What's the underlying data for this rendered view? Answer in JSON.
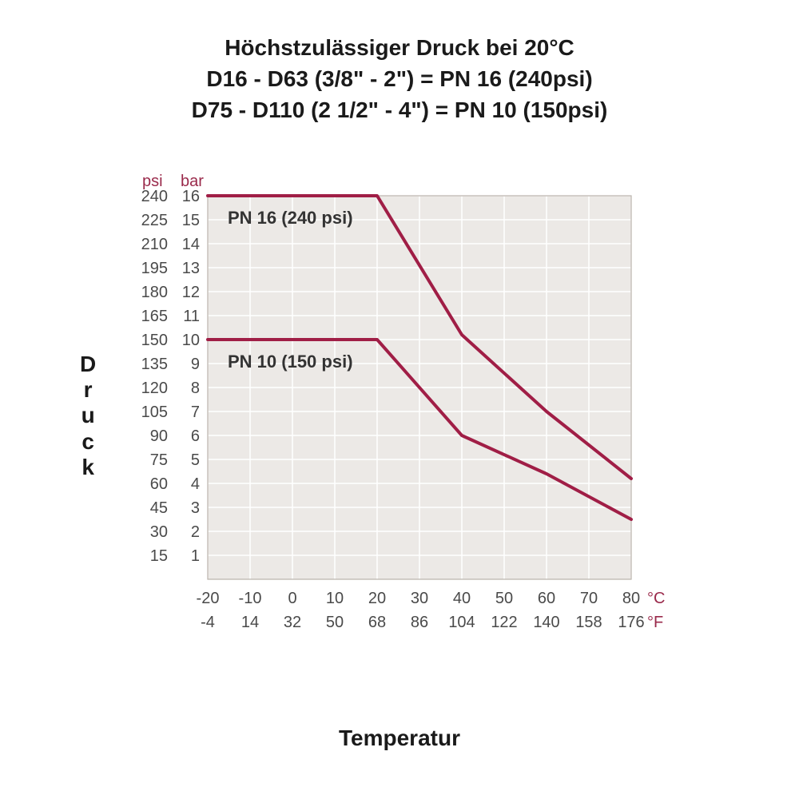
{
  "header": {
    "line1": "Höchstzulässiger Druck bei 20°C",
    "line2": "D16 - D63 (3/8\" - 2\") = PN 16 (240psi)",
    "line3": "D75 - D110 (2 1/2\" - 4\") = PN 10 (150psi)"
  },
  "y_axis_title": "Druck",
  "x_axis_title": "Temperatur",
  "chart": {
    "type": "line",
    "plot_background": "#ece9e6",
    "grid_color": "#ffffff",
    "grid_width": 1.5,
    "outer_border_color": "#b9b2ab",
    "line_color": "#a01e46",
    "line_width": 4,
    "axis_header_color": "#9a2a4b",
    "tick_label_color": "#4a4a4a",
    "y_header_psi": "psi",
    "y_header_bar": "bar",
    "x_unit_c": "°C",
    "x_unit_f": "°F",
    "bar_min": 0,
    "bar_max": 16,
    "bar_ticks": [
      1,
      2,
      3,
      4,
      5,
      6,
      7,
      8,
      9,
      10,
      11,
      12,
      13,
      14,
      15,
      16
    ],
    "psi_ticks": [
      15,
      30,
      45,
      60,
      75,
      90,
      105,
      120,
      135,
      150,
      165,
      180,
      195,
      210,
      225,
      240
    ],
    "x_min": -20,
    "x_max": 80,
    "x_ticks_c": [
      -20,
      -10,
      0,
      10,
      20,
      30,
      40,
      50,
      60,
      70,
      80
    ],
    "x_ticks_f": [
      -4,
      14,
      32,
      50,
      68,
      86,
      104,
      122,
      140,
      158,
      176
    ],
    "series": [
      {
        "label": "PN 16 (240 psi)",
        "label_x": 25,
        "label_y_bar": 15.1,
        "points_x": [
          -20,
          20,
          40,
          60,
          80
        ],
        "points_bar": [
          16,
          16,
          10.2,
          7,
          4.2
        ]
      },
      {
        "label": "PN 10 (150 psi)",
        "label_x": 25,
        "label_y_bar": 9.1,
        "points_x": [
          -20,
          20,
          40,
          60,
          80
        ],
        "points_bar": [
          10,
          10,
          6,
          4.4,
          2.5
        ]
      }
    ]
  }
}
